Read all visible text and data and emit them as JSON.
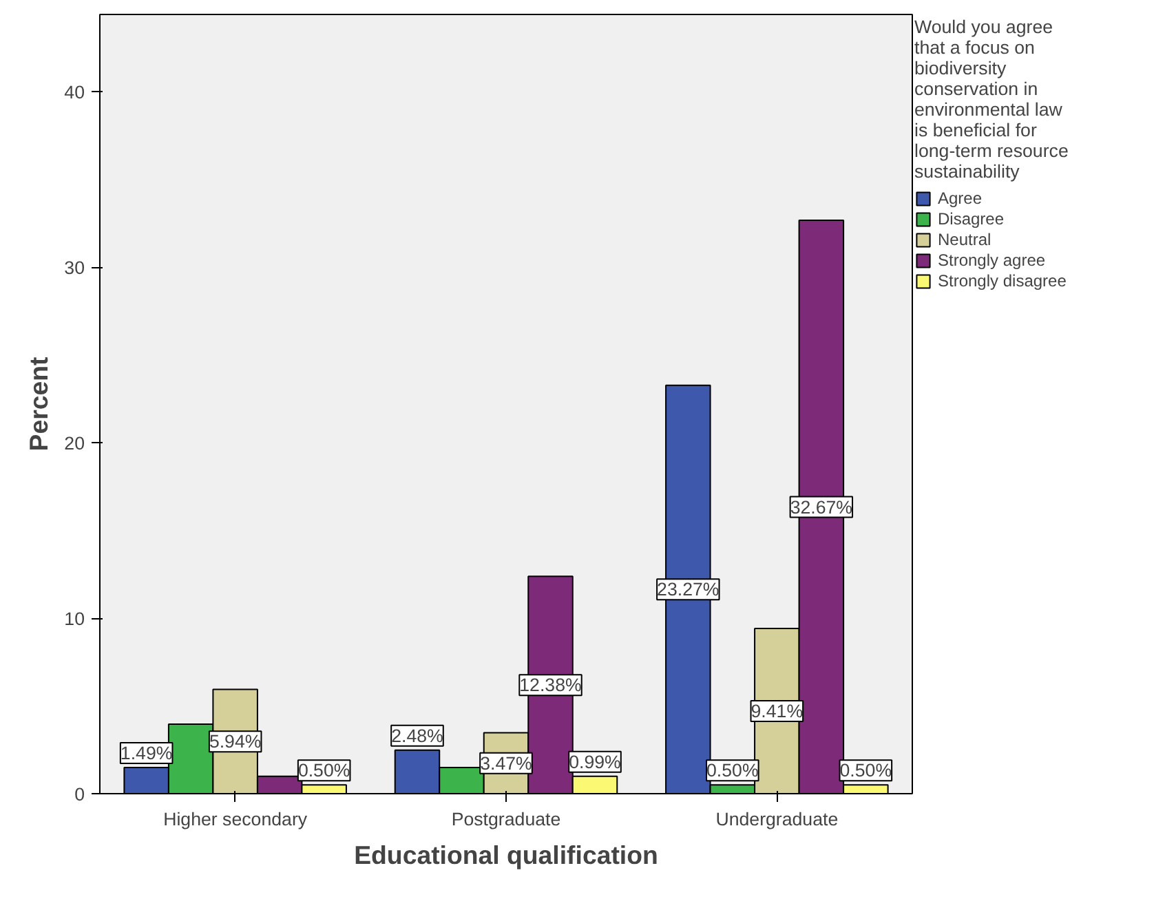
{
  "chart_data": {
    "type": "bar",
    "xlabel": "Educational qualification",
    "ylabel": "Percent",
    "legend_title": "Would you agree that a focus on biodiversity conservation in environmental law is beneficial for long-term resource sustainability",
    "categories": [
      "Higher secondary",
      "Postgraduate",
      "Undergraduate"
    ],
    "series": [
      {
        "name": "Agree",
        "color": "#3e58ac",
        "values": [
          1.49,
          2.48,
          23.27
        ],
        "value_labels": [
          "1.49%",
          "2.48%",
          "23.27%"
        ]
      },
      {
        "name": "Disagree",
        "color": "#3cb44b",
        "values": [
          3.96,
          1.49,
          0.5
        ],
        "value_labels": [
          null,
          null,
          "0.50%"
        ]
      },
      {
        "name": "Neutral",
        "color": "#d5cf9a",
        "values": [
          5.94,
          3.47,
          9.41
        ],
        "value_labels": [
          "5.94%",
          "3.47%",
          "9.41%"
        ]
      },
      {
        "name": "Strongly agree",
        "color": "#7d2a79",
        "values": [
          0.99,
          12.38,
          32.67
        ],
        "value_labels": [
          null,
          "12.38%",
          "32.67%"
        ]
      },
      {
        "name": "Strongly disagree",
        "color": "#fbf873",
        "values": [
          0.5,
          0.99,
          0.5
        ],
        "value_labels": [
          "0.50%",
          "0.99%",
          "0.50%"
        ]
      }
    ],
    "ylim": [
      0,
      44.4
    ],
    "yticks": [
      0,
      10,
      20,
      30,
      40
    ],
    "grid": false,
    "legend": "right"
  }
}
